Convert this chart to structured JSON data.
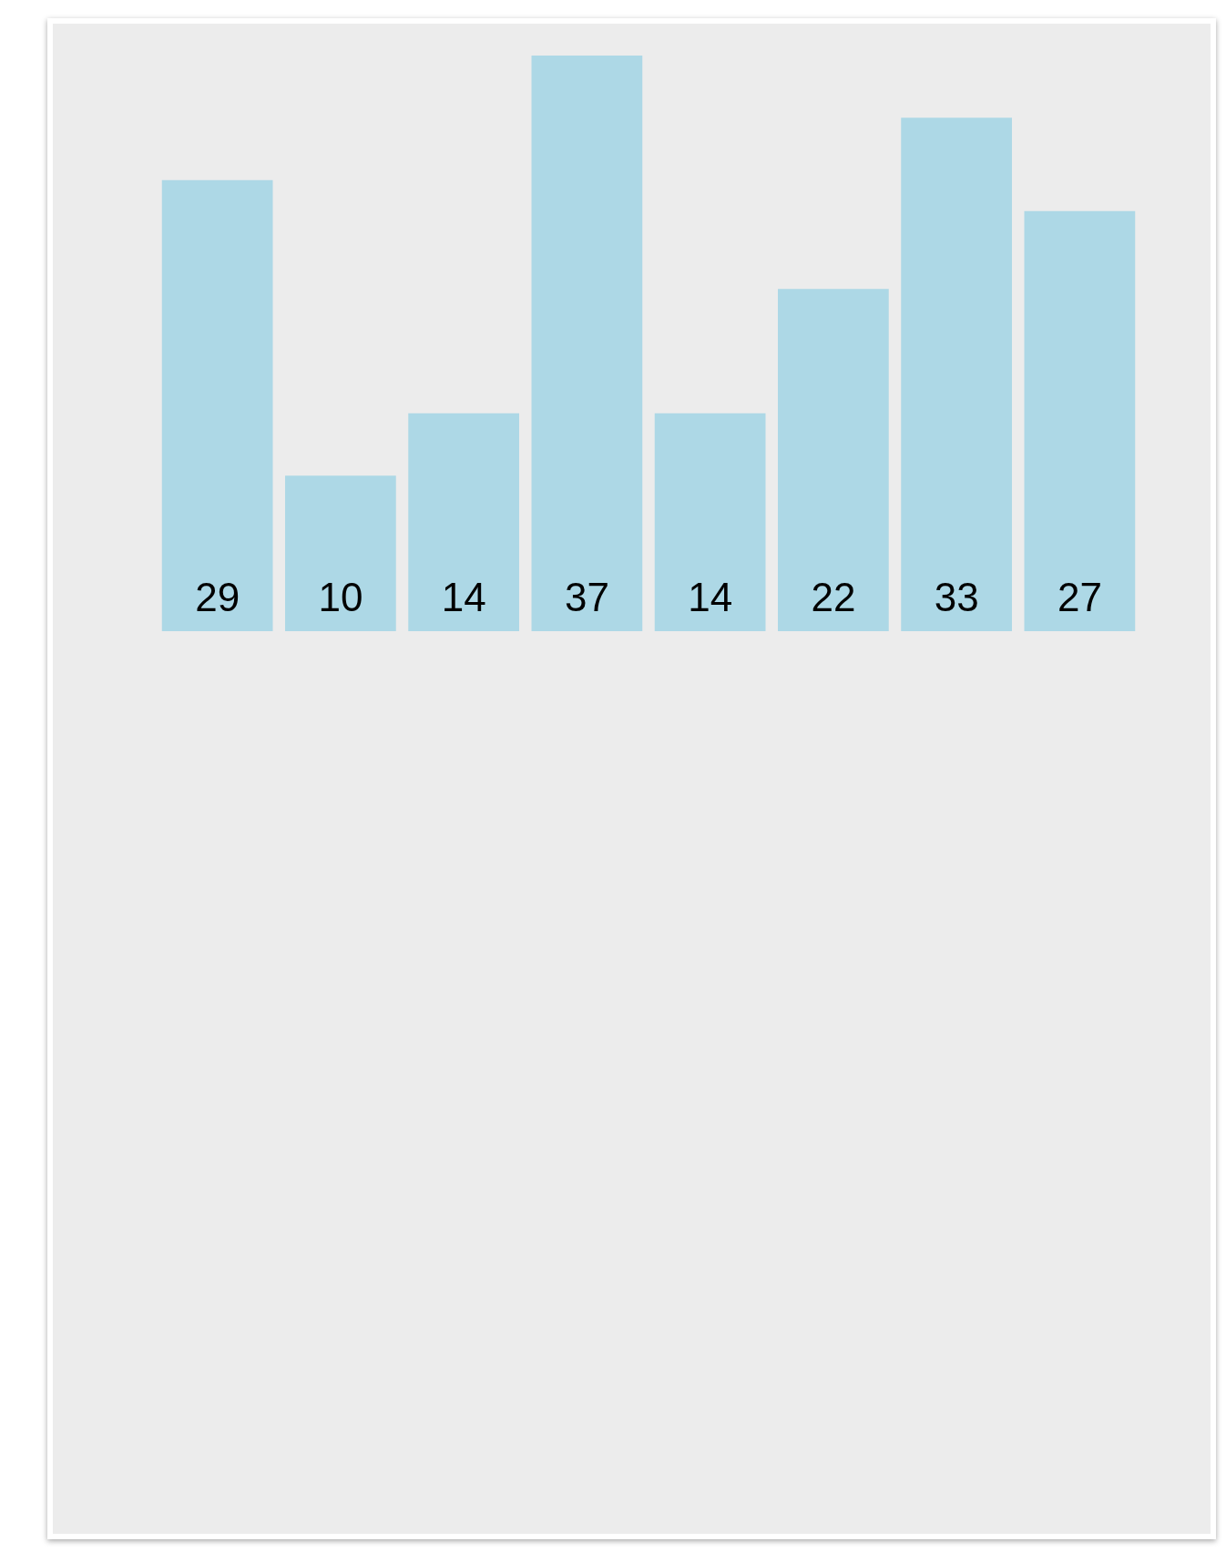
{
  "chart_data": {
    "type": "bar",
    "categories": [
      null,
      null,
      null,
      null,
      null,
      null,
      null,
      null
    ],
    "values": [
      29,
      10,
      14,
      37,
      14,
      22,
      33,
      27
    ],
    "color": "#add8e6",
    "data_labels": true
  }
}
